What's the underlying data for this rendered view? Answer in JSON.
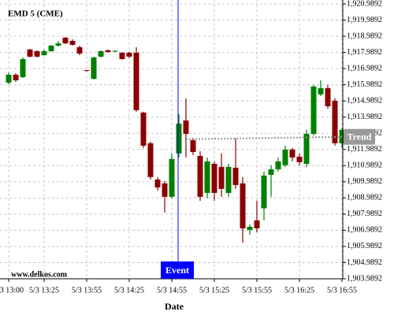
{
  "chart_data": {
    "type": "candlestick",
    "title": "EMD 5 (CME)",
    "watermark": "www.delkos.com",
    "x_label": "Date",
    "categories": [
      "5/3 13:00",
      null,
      null,
      null,
      null,
      "5/3 13:25",
      null,
      null,
      null,
      null,
      null,
      "5/3 13:55",
      null,
      null,
      null,
      null,
      null,
      "5/3 14:25",
      null,
      null,
      null,
      null,
      null,
      "5/3 14:55",
      null,
      null,
      null,
      null,
      null,
      "5/3 15:25",
      null,
      null,
      null,
      null,
      null,
      "5/3 15:55",
      null,
      null,
      null,
      null,
      null,
      "5/3 16:25",
      null,
      null,
      null,
      null,
      null,
      "5/3 16:55"
    ],
    "open": [
      1916.12,
      1916.61,
      1916.46,
      1918.17,
      1918.07,
      1917.82,
      1918.07,
      1918.41,
      1918.9,
      1918.7,
      1918.31,
      1916.9,
      1916.36,
      1917.73,
      1918.12,
      1918.04,
      1917.97,
      1917.97,
      1917.97,
      1914.27,
      1912.37,
      1910.13,
      1909.89,
      1909.06,
      1911.74,
      1913.78,
      1912.56,
      1911.59,
      1909.3,
      1911.1,
      1910.91,
      1909.3,
      1910.86,
      1909.89,
      1907.01,
      1907.6,
      1908.35,
      1910.42,
      1910.76,
      1911.01,
      1911.98,
      1911.54,
      1911.1,
      1912.95,
      1915.39,
      1915.78,
      1915.0,
      1912.37
    ],
    "high": [
      1916.75,
      1916.7,
      1917.68,
      1918.21,
      1918.12,
      1918.17,
      1918.46,
      1918.7,
      1918.95,
      1918.8,
      1918.41,
      1916.9,
      1917.73,
      1918.12,
      1918.17,
      1918.12,
      1918.02,
      1918.02,
      1918.31,
      1914.32,
      1912.47,
      1910.28,
      1910.03,
      1911.74,
      1914.17,
      1915.15,
      1912.71,
      1911.88,
      1911.49,
      1911.25,
      1911.74,
      1911.1,
      1912.66,
      1910.28,
      1907.35,
      1908.81,
      1910.62,
      1911.01,
      1911.49,
      1912.22,
      1912.08,
      1911.74,
      1913.2,
      1915.98,
      1916.27,
      1915.98,
      1915.15,
      1913.3
    ],
    "low": [
      1916.02,
      1916.17,
      1916.41,
      1917.68,
      1917.68,
      1917.78,
      1918.02,
      1918.36,
      1918.51,
      1918.41,
      1917.82,
      1916.8,
      1916.31,
      1917.68,
      1917.97,
      1918.02,
      1917.53,
      1917.63,
      1914.32,
      1912.08,
      1910.13,
      1909.45,
      1908.08,
      1908.96,
      1911.49,
      1911.49,
      1911.64,
      1908.81,
      1908.96,
      1908.81,
      1909.06,
      1909.06,
      1909.55,
      1906.23,
      1906.72,
      1906.87,
      1907.6,
      1909.06,
      1910.62,
      1910.91,
      1911.25,
      1911.01,
      1910.91,
      1912.86,
      1915.29,
      1914.51,
      1912.22,
      1912.08
    ],
    "close": [
      1916.61,
      1916.27,
      1917.58,
      1917.73,
      1917.73,
      1918.07,
      1918.41,
      1918.55,
      1918.55,
      1918.46,
      1917.92,
      1916.85,
      1917.68,
      1918.07,
      1918.02,
      1918.09,
      1917.58,
      1917.73,
      1914.42,
      1912.22,
      1910.28,
      1909.64,
      1909.06,
      1911.4,
      1913.59,
      1912.95,
      1911.83,
      1909.06,
      1911.25,
      1909.3,
      1909.55,
      1910.91,
      1909.79,
      1907.11,
      1907.21,
      1907.11,
      1910.37,
      1910.76,
      1911.25,
      1911.98,
      1911.49,
      1911.2,
      1912.95,
      1915.88,
      1915.78,
      1914.66,
      1912.37,
      1913.2
    ],
    "up_color": "#008000",
    "down_color": "#8b0000",
    "trend": {
      "name": "Trend",
      "color": "#999999",
      "values": [
        null,
        null,
        null,
        null,
        null,
        null,
        null,
        null,
        null,
        null,
        null,
        null,
        null,
        null,
        null,
        null,
        null,
        null,
        null,
        null,
        null,
        null,
        null,
        null,
        null,
        1912.62,
        1912.63,
        1912.63,
        1912.64,
        1912.65,
        1912.65,
        1912.66,
        1912.67,
        1912.67,
        1912.68,
        1912.69,
        1912.69,
        1912.7,
        1912.71,
        1912.71,
        1912.72,
        1912.73,
        1912.73,
        1912.74,
        1912.75,
        1912.75,
        1912.76,
        1912.77
      ]
    },
    "events": {
      "color": "#0000ff",
      "labels": [
        null,
        null,
        null,
        null,
        null,
        null,
        null,
        null,
        null,
        null,
        null,
        null,
        null,
        null,
        null,
        null,
        null,
        null,
        null,
        null,
        null,
        null,
        null,
        null,
        "Event",
        null,
        null,
        null,
        null,
        null,
        null,
        null,
        null,
        null,
        null,
        null,
        null,
        null,
        null,
        null,
        null,
        null,
        null,
        null,
        null,
        null,
        null,
        null
      ]
    },
    "ylim": [
      1903.9892,
      1920.9892
    ],
    "yticks": [
      {
        "value": 1903.9892,
        "label": "1,903.9892"
      },
      {
        "value": 1904.9892,
        "label": "1,904.9892"
      },
      {
        "value": 1905.9892,
        "label": "1,905.9892"
      },
      {
        "value": 1906.9892,
        "label": "1,906.9892"
      },
      {
        "value": 1907.9892,
        "label": "1,907.9892"
      },
      {
        "value": 1908.9892,
        "label": "1,908.9892"
      },
      {
        "value": 1909.9892,
        "label": "1,909.9892"
      },
      {
        "value": 1910.9892,
        "label": "1,910.9892"
      },
      {
        "value": 1911.9892,
        "label": "1,911.9892"
      },
      {
        "value": 1912.9892,
        "label": "1,912.9892"
      },
      {
        "value": 1913.9892,
        "label": "1,913.9892"
      },
      {
        "value": 1914.9892,
        "label": "1,914.9892"
      },
      {
        "value": 1915.9892,
        "label": "1,915.9892"
      },
      {
        "value": 1916.9892,
        "label": "1,916.9892"
      },
      {
        "value": 1917.9892,
        "label": "1,917.9892"
      },
      {
        "value": 1918.9892,
        "label": "1,918.9892"
      },
      {
        "value": 1919.9892,
        "label": "1,919.9892"
      },
      {
        "value": 1920.9892,
        "label": "1,920.9892"
      }
    ],
    "grid": true
  }
}
